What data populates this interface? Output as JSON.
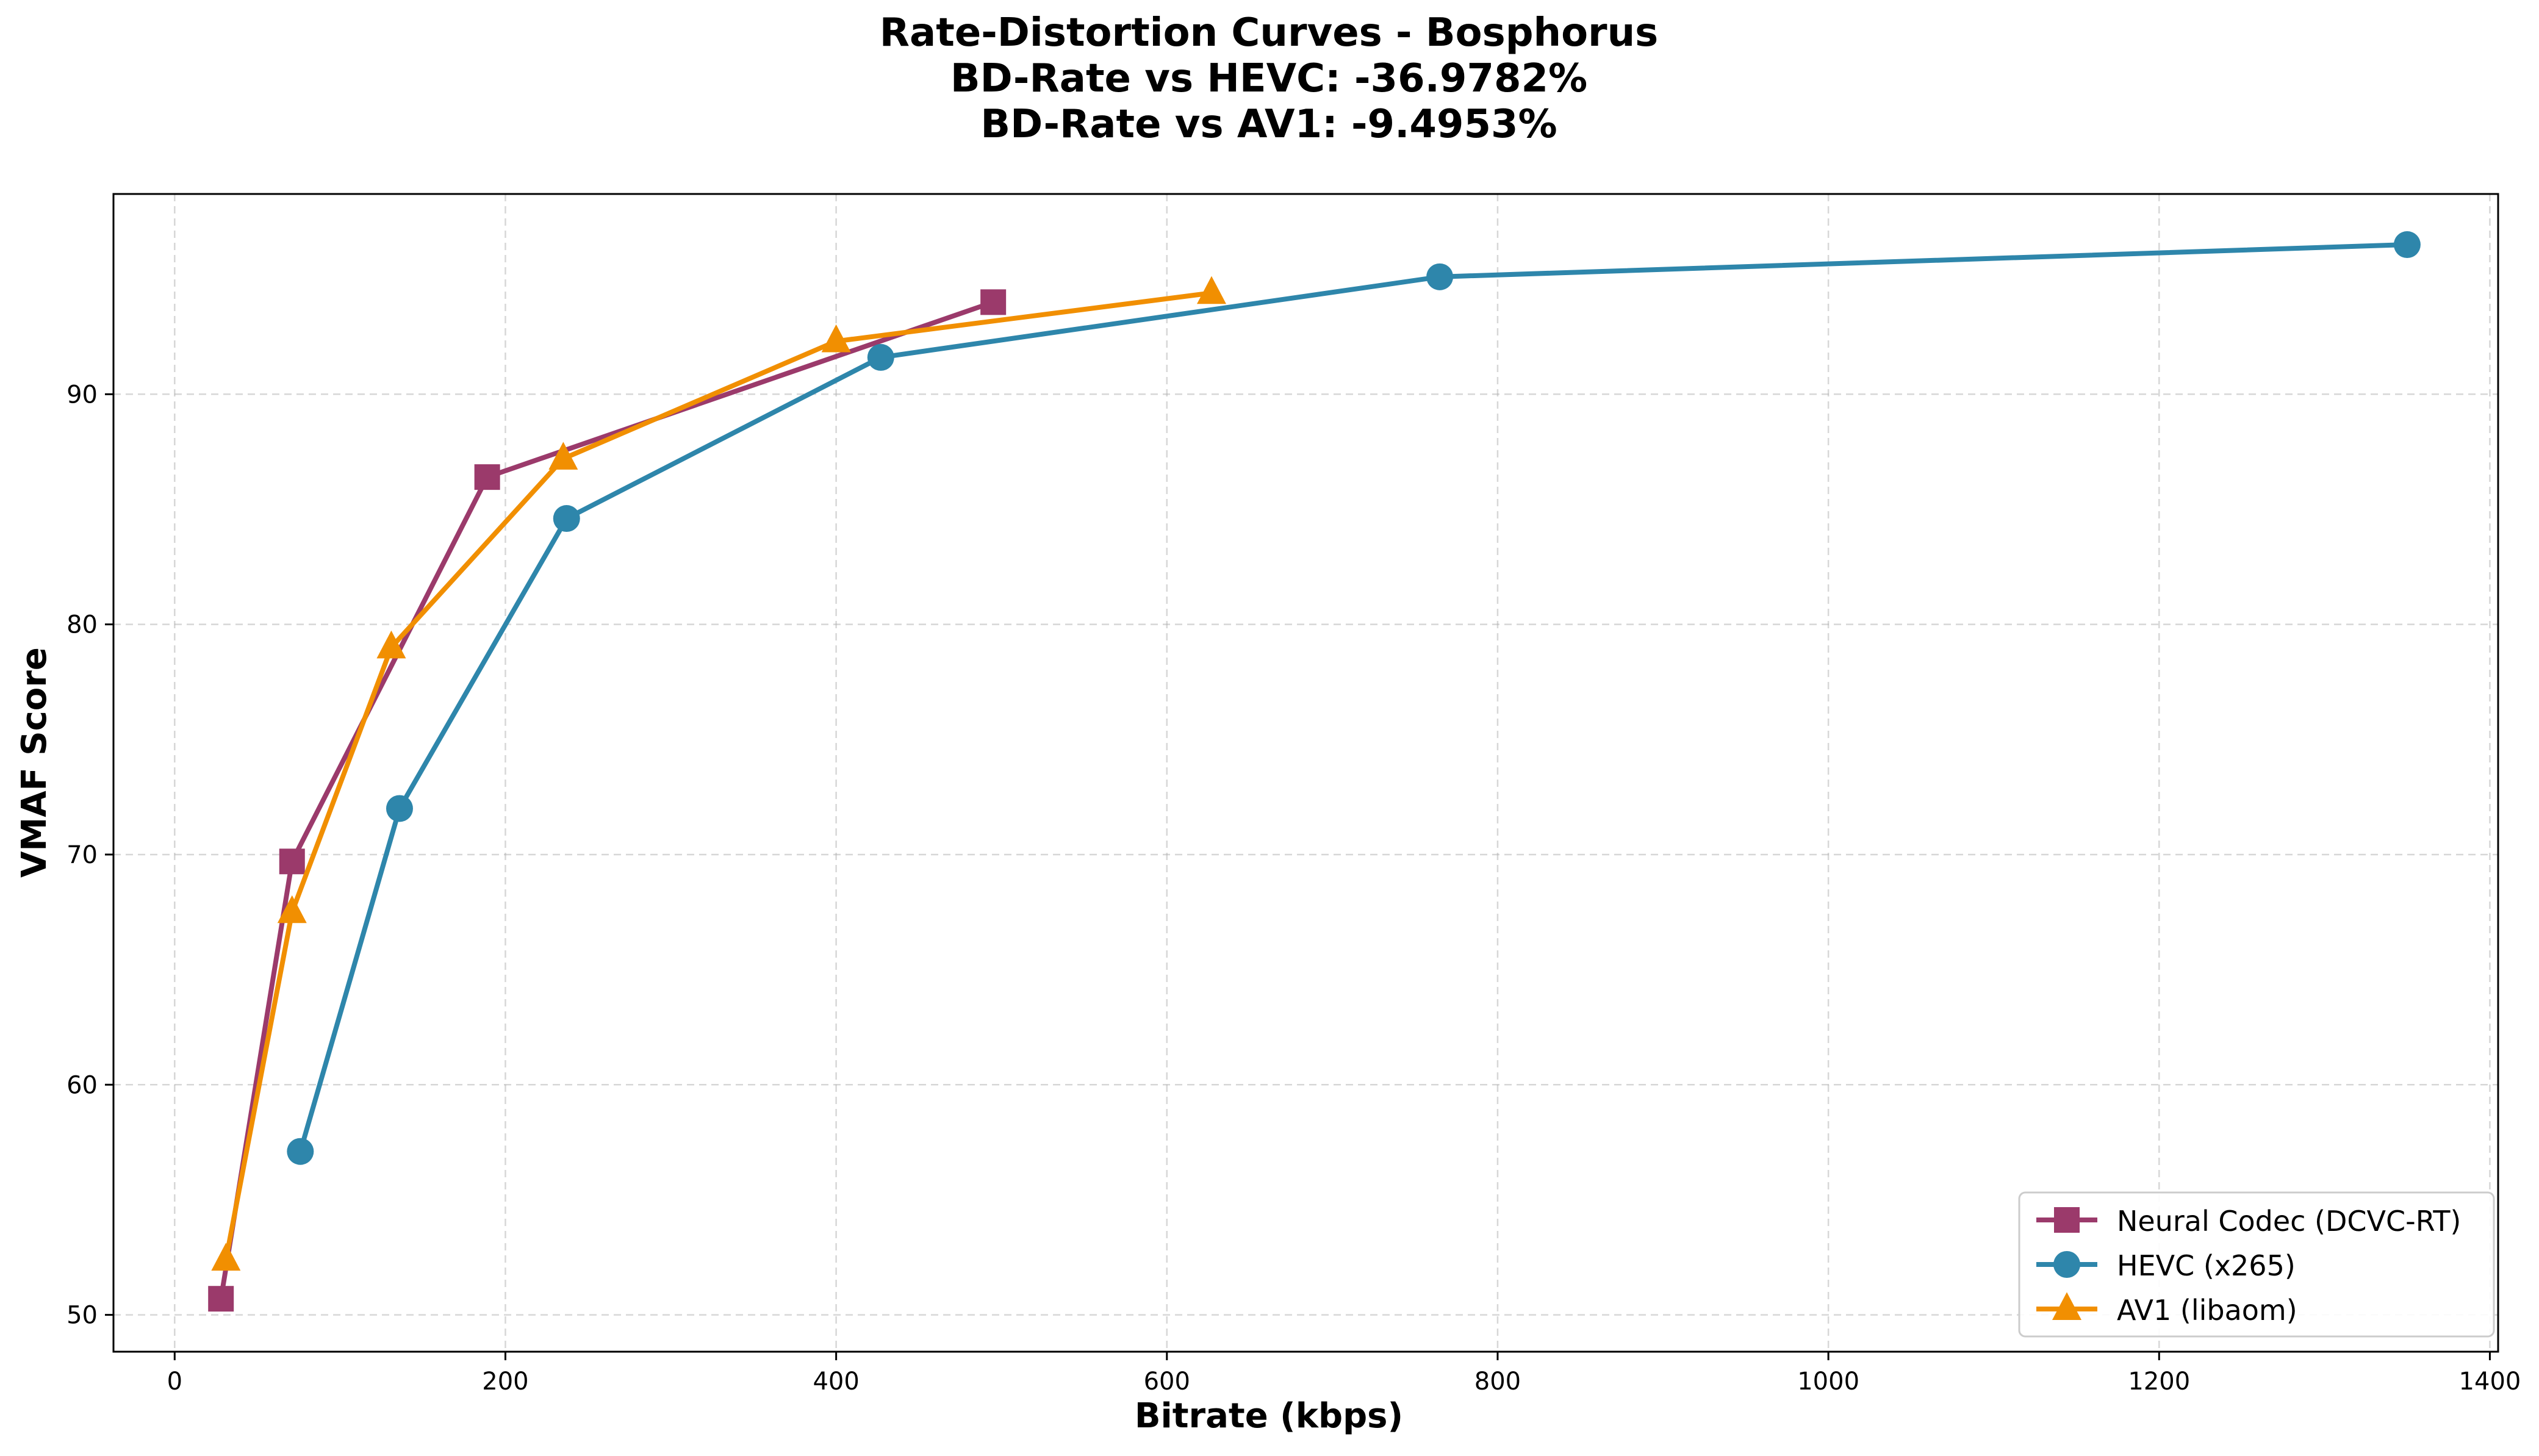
{
  "chart_data": {
    "type": "line",
    "title_lines": [
      "Rate-Distortion Curves - Bosphorus",
      "BD-Rate vs HEVC: -36.9782%",
      "BD-Rate vs AV1: -9.4953%"
    ],
    "xlabel": "Bitrate (kbps)",
    "ylabel": "VMAF Score",
    "xlim": [
      -37,
      1405
    ],
    "ylim": [
      48.4,
      98.7
    ],
    "xticks": [
      0,
      200,
      400,
      600,
      800,
      1000,
      1200,
      1400
    ],
    "yticks": [
      50,
      60,
      70,
      80,
      90
    ],
    "grid": true,
    "legend_position": "lower-right",
    "series": [
      {
        "name": "Neural Codec (DCVC-RT)",
        "color": "#9b3a6b",
        "marker": "square",
        "x": [
          28,
          71,
          189,
          495
        ],
        "y": [
          50.7,
          69.7,
          86.4,
          94.0
        ]
      },
      {
        "name": "HEVC (x265)",
        "color": "#2e86ab",
        "marker": "circle",
        "x": [
          76,
          136,
          237,
          427,
          765,
          1350
        ],
        "y": [
          57.1,
          72.0,
          84.6,
          91.6,
          95.1,
          96.5
        ]
      },
      {
        "name": "AV1 (libaom)",
        "color": "#f18f01",
        "marker": "triangle",
        "x": [
          31,
          71,
          131,
          235,
          400,
          627
        ],
        "y": [
          52.4,
          67.5,
          79.0,
          87.2,
          92.3,
          94.4
        ]
      }
    ]
  }
}
